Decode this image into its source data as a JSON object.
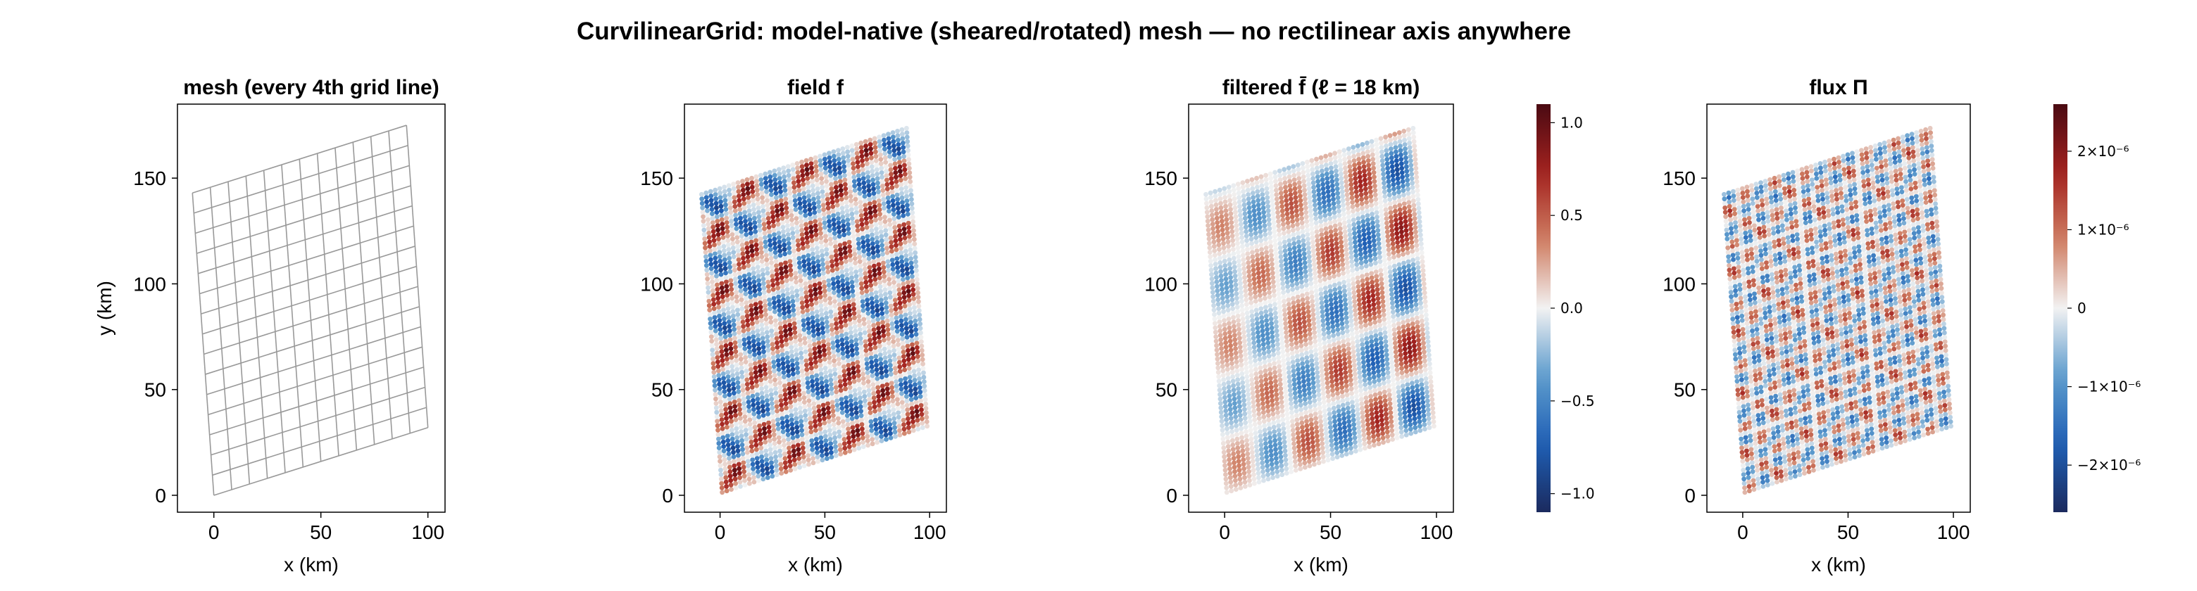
{
  "figure": {
    "title": "CurvilinearGrid: model-native (sheared/rotated) mesh — no rectilinear axis anywhere"
  },
  "chart_data": [
    {
      "type": "line",
      "title": "mesh (every 4th grid line)",
      "xlabel": "x (km)",
      "ylabel": "y (km)",
      "xlim": [
        -17,
        108
      ],
      "ylim": [
        -8,
        185
      ],
      "xticks": [
        0,
        50,
        100
      ],
      "xtick_labels": [
        "0",
        "50",
        "100"
      ],
      "yticks": [
        0,
        50,
        100,
        150
      ],
      "ytick_labels": [
        "0",
        "50",
        "100",
        "150"
      ],
      "grid": false,
      "mesh": {
        "origin": [
          0,
          0
        ],
        "i_direction": [
          100,
          32
        ],
        "j_direction": [
          -10,
          143
        ],
        "line_color": "#999999"
      }
    },
    {
      "type": "scatter",
      "title": "field f",
      "xlabel": "x (km)",
      "ylabel": "",
      "xlim": [
        -17,
        108
      ],
      "ylim": [
        -8,
        185
      ],
      "xticks": [
        0,
        50,
        100
      ],
      "xtick_labels": [
        "0",
        "50",
        "100"
      ],
      "yticks": [
        0,
        50,
        100,
        150
      ],
      "ytick_labels": [
        "0",
        "50",
        "100",
        "150"
      ],
      "grid": false,
      "color_range": [
        -1.1,
        1.1
      ],
      "field": "checkerboard"
    },
    {
      "type": "scatter",
      "title": "filtered f̄  (ℓ = 18 km)",
      "xlabel": "x (km)",
      "ylabel": "",
      "xlim": [
        -17,
        108
      ],
      "ylim": [
        -8,
        185
      ],
      "xticks": [
        0,
        50,
        100
      ],
      "xtick_labels": [
        "0",
        "50",
        "100"
      ],
      "yticks": [
        0,
        50,
        100,
        150
      ],
      "ytick_labels": [
        "0",
        "50",
        "100",
        "150"
      ],
      "grid": false,
      "color_range": [
        -1.1,
        1.1
      ],
      "field": "smooth",
      "colorbar": {
        "ticks": [
          1.0,
          0.5,
          0.0,
          -0.5,
          -1.0
        ],
        "tick_labels": [
          "1.0",
          "0.5",
          "0.0",
          "−0.5",
          "−1.0"
        ]
      }
    },
    {
      "type": "scatter",
      "title": "flux Π",
      "xlabel": "x (km)",
      "ylabel": "",
      "xlim": [
        -17,
        108
      ],
      "ylim": [
        -8,
        185
      ],
      "xticks": [
        0,
        50,
        100
      ],
      "xtick_labels": [
        "0",
        "50",
        "100"
      ],
      "yticks": [
        0,
        50,
        100,
        150
      ],
      "ytick_labels": [
        "0",
        "50",
        "100",
        "150"
      ],
      "grid": false,
      "color_range": [
        -2.6e-06,
        2.6e-06
      ],
      "field": "flux",
      "colorbar": {
        "ticks": [
          2e-06,
          1e-06,
          0,
          -1e-06,
          -2e-06
        ],
        "tick_labels": [
          "2×10⁻⁶",
          "1×10⁻⁶",
          "0",
          "−1×10⁻⁶",
          "−2×10⁻⁶"
        ]
      }
    }
  ],
  "colormap": [
    "#1b2a5e",
    "#1f5fb5",
    "#5e9ccd",
    "#f2f2f2",
    "#cf7d62",
    "#a3221f",
    "#4a0a12"
  ]
}
